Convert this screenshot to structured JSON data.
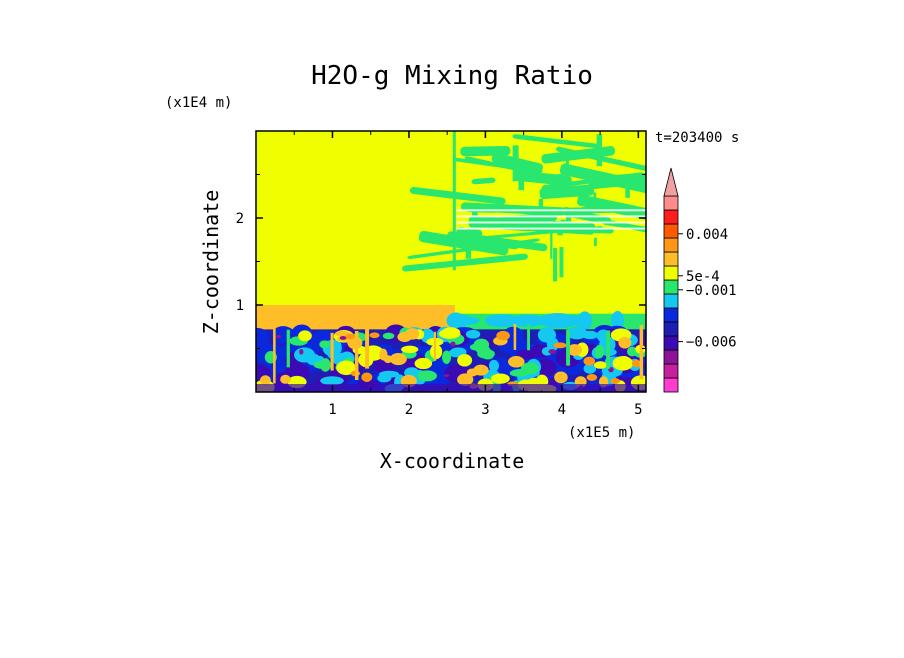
{
  "chart_data": {
    "type": "heatmap",
    "title": "H2O-g Mixing Ratio",
    "xlabel": "X-coordinate",
    "ylabel": "Z-coordinate",
    "x_unit": "(x1E5 m)",
    "y_unit": "(x1E4 m)",
    "time_label": "t=203400 s",
    "xlim": [
      0,
      5.1
    ],
    "ylim": [
      0,
      3.0
    ],
    "x_ticks": [
      {
        "value": 1,
        "label": "1"
      },
      {
        "value": 2,
        "label": "2"
      },
      {
        "value": 3,
        "label": "3"
      },
      {
        "value": 4,
        "label": "4"
      },
      {
        "value": 5,
        "label": "5"
      }
    ],
    "y_ticks": [
      {
        "value": 1,
        "label": "1"
      },
      {
        "value": 2,
        "label": "2"
      }
    ],
    "colorbar": {
      "colors": [
        "#ff3cd2",
        "#c81ea0",
        "#8c1496",
        "#3c0ab4",
        "#1e1eb4",
        "#0a28dc",
        "#14c8f0",
        "#28e66e",
        "#f0ff00",
        "#ffbe28",
        "#ff9614",
        "#ff5a00",
        "#ff1e1e",
        "#ff8c8c",
        "#f0a0a0"
      ],
      "labels": [
        {
          "text": "0.004",
          "level": 11.3
        },
        {
          "text": "5e-4",
          "level": 8.3
        },
        {
          "text": "−0.001",
          "level": 7.3
        },
        {
          "text": "−0.006",
          "level": 3.6
        }
      ]
    },
    "regions": {
      "upper_left_value": "yellow",
      "boundary_layer_top": 0.72
    }
  }
}
